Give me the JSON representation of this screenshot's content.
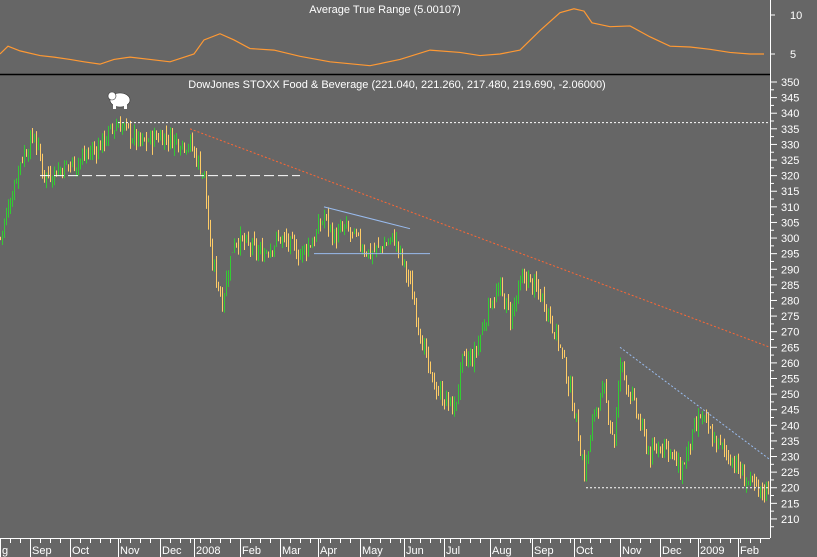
{
  "chart_data": [
    {
      "type": "line",
      "title": "Average True Range (5.00107)",
      "ylim": [
        2.8,
        11.5
      ],
      "y_ticks": [
        5,
        10
      ],
      "color": "#ff9933",
      "x": [
        0,
        4,
        10,
        20,
        27,
        35,
        42,
        50,
        57,
        65,
        75,
        85,
        97,
        102,
        110,
        117,
        125,
        137,
        150,
        165,
        185,
        200,
        215,
        230,
        240,
        250,
        260,
        270,
        280,
        287,
        292,
        296,
        305,
        315,
        325,
        335,
        345,
        355,
        365,
        375,
        382
      ],
      "values": [
        5.0,
        6.0,
        5.4,
        4.8,
        4.6,
        4.3,
        4.0,
        3.7,
        4.3,
        4.6,
        4.3,
        4.0,
        5.0,
        6.8,
        7.6,
        6.8,
        5.7,
        5.5,
        4.7,
        4.0,
        3.5,
        4.3,
        5.5,
        5.2,
        4.8,
        5.0,
        5.5,
        8.0,
        10.3,
        10.8,
        10.5,
        9.0,
        8.5,
        8.6,
        7.2,
        6.0,
        5.9,
        5.6,
        5.2,
        5.0,
        5.0
      ]
    },
    {
      "type": "candlestick",
      "title": "DowJones STOXX Food & Beverage (221.040, 221.260, 217.480, 219.690, -2.06000)",
      "ylim": [
        205,
        355
      ],
      "y_ticks": [
        210,
        215,
        220,
        225,
        230,
        235,
        240,
        245,
        250,
        255,
        260,
        265,
        270,
        275,
        280,
        285,
        290,
        295,
        300,
        305,
        310,
        315,
        320,
        325,
        330,
        335,
        340,
        345,
        350
      ],
      "close_x": [
        0,
        10,
        17,
        22,
        40,
        50,
        59,
        70,
        80,
        95,
        102,
        105,
        111,
        117,
        130,
        140,
        150,
        157,
        162,
        167,
        172,
        185,
        197,
        205,
        210,
        215,
        220,
        227,
        231,
        237,
        245,
        250,
        255,
        262,
        272,
        280,
        287,
        292,
        295,
        297,
        302,
        307,
        310,
        315,
        320,
        325,
        332,
        340,
        350,
        357,
        365,
        372,
        380,
        383
      ],
      "close": [
        300,
        325,
        333,
        320,
        325,
        330,
        337,
        330,
        333,
        330,
        320,
        295,
        280,
        300,
        295,
        300,
        295,
        300,
        307,
        300,
        303,
        295,
        300,
        285,
        270,
        255,
        250,
        245,
        260,
        262,
        280,
        283,
        275,
        288,
        280,
        265,
        245,
        225,
        235,
        245,
        250,
        235,
        260,
        250,
        240,
        230,
        235,
        225,
        243,
        235,
        230,
        223,
        218,
        220
      ],
      "up_color": "#33cc33",
      "down_color": "#ffcc66",
      "x_tick_labels": [
        "g",
        "Sep",
        "Oct",
        "Nov",
        "Dec",
        "2008",
        "Feb",
        "Mar",
        "Apr",
        "May",
        "Jun",
        "Jul",
        "Aug",
        "Sep",
        "Oct",
        "Nov",
        "Dec",
        "2009",
        "Feb"
      ],
      "x_tick_index": [
        0,
        15,
        35,
        59,
        80,
        97,
        120,
        140,
        159,
        180,
        202,
        222,
        245,
        266,
        287,
        310,
        330,
        349,
        369
      ],
      "trendlines": [
        {
          "name": "top-support",
          "style": "dotted",
          "color": "#ffffff",
          "from": [
            59,
            337
          ],
          "to": [
            385,
            337
          ]
        },
        {
          "name": "early-support",
          "style": "dashed",
          "color": "#ffffff",
          "from": [
            20,
            320
          ],
          "to": [
            150,
            320
          ]
        },
        {
          "name": "long-downtrend",
          "style": "dotted",
          "color": "#ff6633",
          "from": [
            95,
            335
          ],
          "to": [
            385,
            265
          ]
        },
        {
          "name": "triangle-top",
          "style": "solid",
          "color": "#99bbee",
          "from": [
            162,
            310
          ],
          "to": [
            205,
            303
          ]
        },
        {
          "name": "triangle-bottom",
          "style": "solid",
          "color": "#99bbee",
          "from": [
            157,
            295
          ],
          "to": [
            215,
            295
          ]
        },
        {
          "name": "late-downtrend",
          "style": "dotted",
          "color": "#99bbee",
          "from": [
            310,
            265
          ],
          "to": [
            385,
            229
          ]
        },
        {
          "name": "bottom-support",
          "style": "dotted",
          "color": "#ffffff",
          "from": [
            293,
            220
          ],
          "to": [
            385,
            220
          ]
        }
      ]
    }
  ]
}
